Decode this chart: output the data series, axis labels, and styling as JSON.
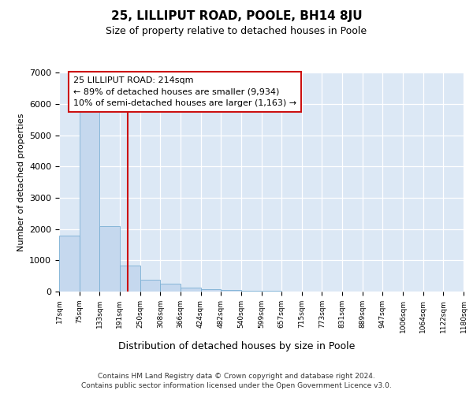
{
  "title": "25, LILLIPUT ROAD, POOLE, BH14 8JU",
  "subtitle": "Size of property relative to detached houses in Poole",
  "xlabel": "Distribution of detached houses by size in Poole",
  "ylabel": "Number of detached properties",
  "bar_color": "#c5d8ee",
  "bar_edge_color": "#7aafd4",
  "background_color": "#dce8f5",
  "vline_color": "#cc1111",
  "annotation_text": "25 LILLIPUT ROAD: 214sqm\n← 89% of detached houses are smaller (9,934)\n10% of semi-detached houses are larger (1,163) →",
  "footer_line1": "Contains HM Land Registry data © Crown copyright and database right 2024.",
  "footer_line2": "Contains public sector information licensed under the Open Government Licence v3.0.",
  "bin_edges": [
    17,
    75,
    133,
    191,
    250,
    308,
    366,
    424,
    482,
    540,
    599,
    657,
    715,
    773,
    831,
    889,
    947,
    1006,
    1064,
    1122,
    1180
  ],
  "counts": [
    1800,
    5800,
    2100,
    830,
    380,
    260,
    130,
    80,
    60,
    30,
    20,
    10,
    0,
    0,
    0,
    0,
    0,
    0,
    0,
    0
  ],
  "ylim": [
    0,
    7000
  ],
  "yticks": [
    0,
    1000,
    2000,
    3000,
    4000,
    5000,
    6000,
    7000
  ],
  "property_sqm": 214
}
